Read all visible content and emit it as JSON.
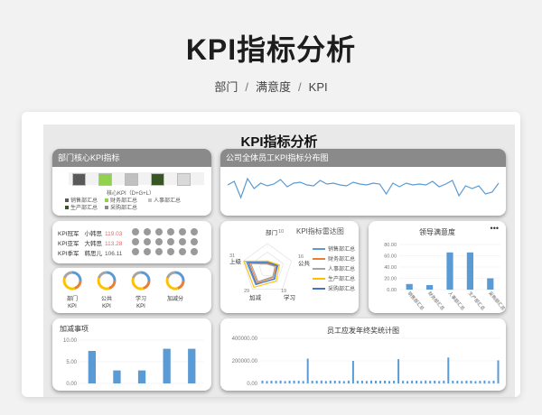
{
  "hero": {
    "title": "KPI指标分析",
    "crumbs": [
      "部门",
      "满意度",
      "KPI"
    ]
  },
  "sheet": {
    "title": "KPI指标分析"
  },
  "dept_card": {
    "title": "部门核心KPI指标",
    "bar_colors": [
      "#595959",
      "#92d050",
      "#c0c0c0",
      "#375623",
      "#d9d9d9"
    ],
    "formula": "核心KPI（D+G+L）",
    "legend": [
      "销售部汇总",
      "财务部汇总",
      "人事部汇总",
      "生产部汇总",
      "采购部汇总"
    ],
    "legend_colors": [
      "#595959",
      "#92d050",
      "#c0c0c0",
      "#375623",
      "#8a8a8a"
    ]
  },
  "trend_card": {
    "title": "公司全体员工KPI指标分布图"
  },
  "champion_card": {
    "rows": [
      {
        "label": "KPI冠军",
        "name": "小韩思",
        "value": "119.03"
      },
      {
        "label": "KPI亚军",
        "name": "大韩思",
        "value": "113.28"
      },
      {
        "label": "KPI季军",
        "name": "韩思儿",
        "value": "106.11"
      }
    ]
  },
  "donut_card": {
    "items": [
      {
        "l1": "部门",
        "l2": "KPI"
      },
      {
        "l1": "公共",
        "l2": "KPI"
      },
      {
        "l1": "学习",
        "l2": "KPI"
      },
      {
        "l1": "加减分",
        "l2": ""
      }
    ]
  },
  "radar_card": {
    "title": "KPI指标雷达图",
    "axis_labels": [
      "部门",
      "公共",
      "学习",
      "加减",
      "上级"
    ],
    "axis_values": [
      "10",
      "16",
      "19",
      "29",
      "31"
    ],
    "legend": [
      "销售部汇总",
      "财务部汇总",
      "人事部汇总",
      "生产部汇总",
      "采购部汇总"
    ],
    "colors": [
      "#5b9bd5",
      "#ed7d31",
      "#a5a5a5",
      "#ffc000",
      "#4472c4"
    ]
  },
  "satisfaction_card": {
    "title": "领导满意度",
    "more": "•••",
    "categories": [
      "销售部汇总",
      "财务部汇总",
      "人事部汇总",
      "生产部汇总",
      "采购部汇总"
    ]
  },
  "bonus_card": {
    "title": "加减事项"
  },
  "award_card": {
    "title": "员工应发年终奖统计图"
  },
  "chart_data": [
    {
      "type": "bar",
      "title": "领导满意度",
      "categories": [
        "销售部汇总",
        "财务部汇总",
        "人事部汇总",
        "生产部汇总",
        "采购部汇总"
      ],
      "values": [
        10,
        8,
        66,
        66,
        20
      ],
      "ylim": [
        0,
        80
      ],
      "yticks": [
        "80.00",
        "60.00",
        "40.00",
        "20.00",
        "0.00"
      ],
      "color": "#5b9bd5"
    },
    {
      "type": "bar",
      "title": "加减事项",
      "values": [
        7.5,
        3,
        3,
        8,
        8
      ],
      "ylim": [
        0,
        10
      ],
      "yticks": [
        "10.00",
        "5.00",
        "0.00"
      ],
      "color": "#5b9bd5"
    },
    {
      "type": "bar",
      "title": "员工应发年终奖统计图",
      "values": [
        25000,
        22000,
        24000,
        23000,
        26000,
        21000,
        24000,
        25000,
        23000,
        22000,
        220000,
        24000,
        23000,
        26000,
        22000,
        25000,
        24000,
        23000,
        21000,
        25000,
        200000,
        23000,
        24000,
        22000,
        26000,
        24000,
        23000,
        25000,
        22000,
        24000,
        215000,
        23000,
        21000,
        25000,
        24000,
        22000,
        26000,
        23000,
        24000,
        22000,
        25000,
        230000,
        24000,
        23000,
        22000,
        25000,
        24000,
        21000,
        23000,
        26000,
        22000,
        24000,
        205000
      ],
      "ylim": [
        0,
        400000
      ],
      "yticks": [
        "400000.00",
        "200000.00",
        "0.00"
      ],
      "color": "#5b9bd5"
    },
    {
      "type": "line",
      "title": "公司全体员工KPI指标分布图",
      "values": [
        64,
        68,
        50,
        71,
        60,
        66,
        63,
        65,
        70,
        62,
        66,
        67,
        64,
        63,
        69,
        65,
        66,
        64,
        63,
        67,
        65,
        64,
        66,
        65,
        54,
        66,
        62,
        66,
        64,
        65,
        64,
        68,
        62,
        65,
        69,
        52,
        63,
        60,
        63,
        54,
        56,
        66
      ],
      "ylim": [
        40,
        80
      ],
      "color": "#5b9bd5"
    },
    {
      "type": "line",
      "title": "KPI指标雷达图",
      "categories": [
        "部门",
        "公共",
        "学习",
        "加减",
        "上级"
      ],
      "series": [
        {
          "name": "销售部汇总",
          "values": [
            9,
            14,
            15,
            25,
            28
          ]
        },
        {
          "name": "财务部汇总",
          "values": [
            7,
            12,
            13,
            22,
            24
          ]
        },
        {
          "name": "人事部汇总",
          "values": [
            6,
            10,
            12,
            20,
            22
          ]
        },
        {
          "name": "生产部汇总",
          "values": [
            10,
            16,
            19,
            29,
            31
          ]
        },
        {
          "name": "采购部汇总",
          "values": [
            8,
            13,
            16,
            24,
            26
          ]
        }
      ],
      "ylim": [
        0,
        32
      ]
    }
  ]
}
